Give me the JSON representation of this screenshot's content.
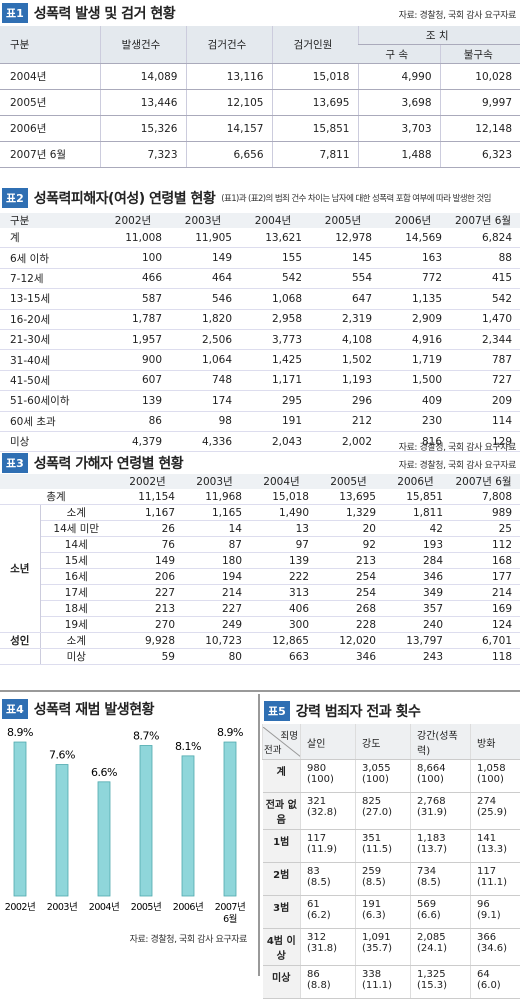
{
  "table1": {
    "badge": "표1",
    "title": "성폭력 발생 및 검거 현황",
    "source": "자료: 경찰청, 국회 감사 요구자료",
    "header": [
      "구분",
      "발생건수",
      "검거건수",
      "검거인원"
    ],
    "group_header": "조 치",
    "sub_header": [
      "구 속",
      "불구속"
    ],
    "rows": [
      [
        "2004년",
        "14,089",
        "13,116",
        "15,018",
        "4,990",
        "10,028"
      ],
      [
        "2005년",
        "13,446",
        "12,105",
        "13,695",
        "3,698",
        "9,997"
      ],
      [
        "2006년",
        "15,326",
        "14,157",
        "15,851",
        "3,703",
        "12,148"
      ],
      [
        "2007년 6월",
        "7,323",
        "6,656",
        "7,811",
        "1,488",
        "6,323"
      ]
    ]
  },
  "table2": {
    "badge": "표2",
    "title": "성폭력피해자(여성) 연령별 현황",
    "note": "(표1)과 (표2)의 범죄 건수 차이는 남자에 대한 성폭력 포함 여부에 따라 발생한 것임",
    "source": "자료: 경찰청, 국회 감사 요구자료",
    "header": [
      "구분",
      "2002년",
      "2003년",
      "2004년",
      "2005년",
      "2006년",
      "2007년 6월"
    ],
    "rows": [
      [
        "계",
        "11,008",
        "11,905",
        "13,621",
        "12,978",
        "14,569",
        "6,824"
      ],
      [
        "6세 이하",
        "100",
        "149",
        "155",
        "145",
        "163",
        "88"
      ],
      [
        "7-12세",
        "466",
        "464",
        "542",
        "554",
        "772",
        "415"
      ],
      [
        "13-15세",
        "587",
        "546",
        "1,068",
        "647",
        "1,135",
        "542"
      ],
      [
        "16-20세",
        "1,787",
        "1,820",
        "2,958",
        "2,319",
        "2,909",
        "1,470"
      ],
      [
        "21-30세",
        "1,957",
        "2,506",
        "3,773",
        "4,108",
        "4,916",
        "2,344"
      ],
      [
        "31-40세",
        "900",
        "1,064",
        "1,425",
        "1,502",
        "1,719",
        "787"
      ],
      [
        "41-50세",
        "607",
        "748",
        "1,171",
        "1,193",
        "1,500",
        "727"
      ],
      [
        "51-60세이하",
        "139",
        "174",
        "295",
        "296",
        "409",
        "209"
      ],
      [
        "60세 초과",
        "86",
        "98",
        "191",
        "212",
        "230",
        "114"
      ],
      [
        "미상",
        "4,379",
        "4,336",
        "2,043",
        "2,002",
        "816",
        "129"
      ]
    ]
  },
  "table3": {
    "badge": "표3",
    "title": "성폭력 가해자 연령별 현황",
    "source": "자료: 경찰청, 국회 감사 요구자료",
    "header": [
      "2002년",
      "2003년",
      "2004년",
      "2005년",
      "2006년",
      "2007년 6월"
    ],
    "total": [
      "총계",
      "11,154",
      "11,968",
      "15,018",
      "13,695",
      "15,851",
      "7,808"
    ],
    "groups": [
      {
        "name": "소년",
        "rows": [
          [
            "소계",
            "1,167",
            "1,165",
            "1,490",
            "1,329",
            "1,811",
            "989"
          ],
          [
            "14세 미만",
            "26",
            "14",
            "13",
            "20",
            "42",
            "25"
          ],
          [
            "14세",
            "76",
            "87",
            "97",
            "92",
            "193",
            "112"
          ],
          [
            "15세",
            "149",
            "180",
            "139",
            "213",
            "284",
            "168"
          ],
          [
            "16세",
            "206",
            "194",
            "222",
            "254",
            "346",
            "177"
          ],
          [
            "17세",
            "227",
            "214",
            "313",
            "254",
            "349",
            "214"
          ],
          [
            "18세",
            "213",
            "227",
            "406",
            "268",
            "357",
            "169"
          ],
          [
            "19세",
            "270",
            "249",
            "300",
            "228",
            "240",
            "124"
          ]
        ]
      },
      {
        "name": "성인",
        "rows": [
          [
            "소계",
            "9,928",
            "10,723",
            "12,865",
            "12,020",
            "13,797",
            "6,701"
          ]
        ]
      }
    ],
    "other": [
      [
        "미상",
        "59",
        "80",
        "663",
        "346",
        "243",
        "118"
      ]
    ]
  },
  "chart4": {
    "type": "bar",
    "badge": "표4",
    "title": "성폭력 재범 발생현황",
    "source": "자료: 경찰청, 국회 감사 요구자료",
    "color": "#8fd6da",
    "categories": [
      "2002년",
      "2003년",
      "2004년",
      "2005년",
      "2006년",
      "2007년 6월"
    ],
    "values": [
      8.9,
      7.6,
      6.6,
      8.7,
      8.1,
      8.9
    ],
    "value_labels": [
      "8.9%",
      "7.6%",
      "6.6%",
      "8.7%",
      "8.1%",
      "8.9%"
    ]
  },
  "table5": {
    "badge": "표5",
    "title": "강력 범죄자 전과 횟수",
    "corner_top": "죄명",
    "corner_bottom": "전과",
    "header": [
      "살인",
      "강도",
      "강간(성폭력)",
      "방화"
    ],
    "rows": [
      {
        "label": "계",
        "cells": [
          [
            "980",
            "(100)"
          ],
          [
            "3,055",
            "(100)"
          ],
          [
            "8,664",
            "(100)"
          ],
          [
            "1,058",
            "(100)"
          ]
        ]
      },
      {
        "label": "전과 없음",
        "cells": [
          [
            "321",
            "(32.8)"
          ],
          [
            "825",
            "(27.0)"
          ],
          [
            "2,768",
            "(31.9)"
          ],
          [
            "274",
            "(25.9)"
          ]
        ]
      },
      {
        "label": "1범",
        "cells": [
          [
            "117",
            "(11.9)"
          ],
          [
            "351",
            "(11.5)"
          ],
          [
            "1,183",
            "(13.7)"
          ],
          [
            "141",
            "(13.3)"
          ]
        ]
      },
      {
        "label": "2범",
        "cells": [
          [
            "83",
            "(8.5)"
          ],
          [
            "259",
            "(8.5)"
          ],
          [
            "734",
            "(8.5)"
          ],
          [
            "117",
            "(11.1)"
          ]
        ]
      },
      {
        "label": "3범",
        "cells": [
          [
            "61",
            "(6.2)"
          ],
          [
            "191",
            "(6.3)"
          ],
          [
            "569",
            "(6.6)"
          ],
          [
            "96",
            "(9.1)"
          ]
        ]
      },
      {
        "label": "4범 이상",
        "cells": [
          [
            "312",
            "(31.8)"
          ],
          [
            "1,091",
            "(35.7)"
          ],
          [
            "2,085",
            "(24.1)"
          ],
          [
            "366",
            "(34.6)"
          ]
        ]
      },
      {
        "label": "미상",
        "cells": [
          [
            "86",
            "(8.8)"
          ],
          [
            "338",
            "(11.1)"
          ],
          [
            "1,325",
            "(15.3)"
          ],
          [
            "64",
            "(6.0)"
          ]
        ]
      }
    ]
  }
}
